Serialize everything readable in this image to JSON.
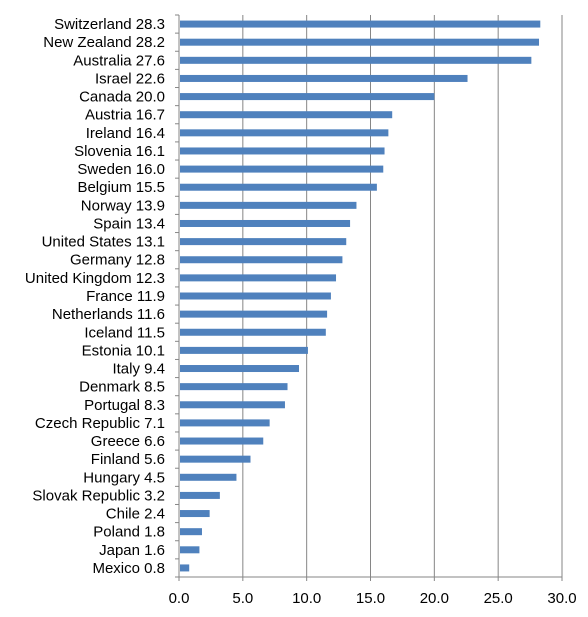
{
  "chart_data": {
    "type": "bar",
    "orientation": "horizontal",
    "title": "",
    "xlabel": "",
    "ylabel": "",
    "categories": [
      "Switzerland 28.3",
      "New Zealand 28.2",
      "Australia 27.6",
      "Israel 22.6",
      "Canada 20.0",
      "Austria 16.7",
      "Ireland 16.4",
      "Slovenia 16.1",
      "Sweden 16.0",
      "Belgium 15.5",
      "Norway 13.9",
      "Spain 13.4",
      "United States 13.1",
      "Germany 12.8",
      "United Kingdom 12.3",
      "France 11.9",
      "Netherlands 11.6",
      "Iceland 11.5",
      "Estonia 10.1",
      "Italy 9.4",
      "Denmark 8.5",
      "Portugal 8.3",
      "Czech Republic 7.1",
      "Greece 6.6",
      "Finland 5.6",
      "Hungary 4.5",
      "Slovak Republic 3.2",
      "Chile 2.4",
      "Poland 1.8",
      "Japan 1.6",
      "Mexico 0.8"
    ],
    "values": [
      28.3,
      28.2,
      27.6,
      22.6,
      20.0,
      16.7,
      16.4,
      16.1,
      16.0,
      15.5,
      13.9,
      13.4,
      13.1,
      12.8,
      12.3,
      11.9,
      11.6,
      11.5,
      10.1,
      9.4,
      8.5,
      8.3,
      7.1,
      6.6,
      5.6,
      4.5,
      3.2,
      2.4,
      1.8,
      1.6,
      0.8
    ],
    "xlim": [
      0,
      30
    ],
    "xticks": [
      "0.0",
      "5.0",
      "10.0",
      "15.0",
      "20.0",
      "25.0",
      "30.0"
    ],
    "grid": "vertical",
    "legend": "none",
    "bar_color": "#4F81BD",
    "grid_color": "#868686"
  }
}
